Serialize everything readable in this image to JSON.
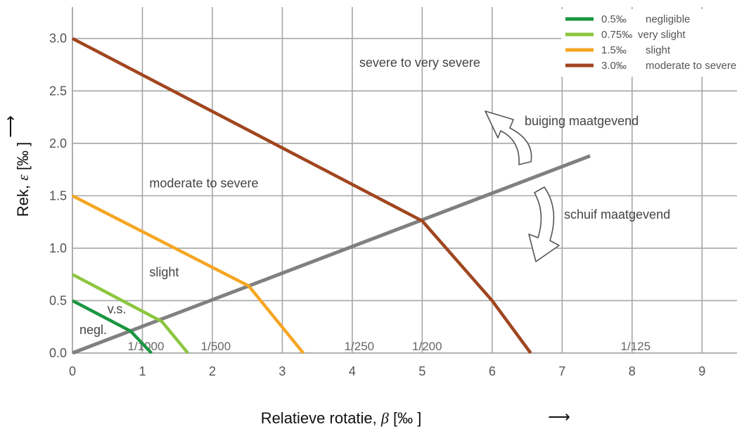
{
  "chart_data": {
    "type": "line",
    "xlabel": "Relatieve rotatie, β [‰ ]",
    "xlabel_parts": [
      "Relatieve rotatie, ",
      "β",
      " [‰ ]"
    ],
    "ylabel": "Rek, ε [‰ ]",
    "ylabel_parts": [
      "Rek, ",
      "ε",
      " [‰ ]"
    ],
    "arrow_glyph": "⟶",
    "xlim": [
      0,
      9.5
    ],
    "ylim": [
      0,
      3.3
    ],
    "x_ticks": [
      "0",
      "1",
      "2",
      "3",
      "4",
      "5",
      "6",
      "7",
      "8",
      "9"
    ],
    "y_ticks": [
      "0.0",
      "0.5",
      "1.0",
      "1.5",
      "2.0",
      "2.5",
      "3.0"
    ],
    "grid": true,
    "legend_position": "top-right",
    "series": [
      {
        "label": "0.5‰",
        "name": "negligible",
        "color": "#1a9641",
        "points": [
          [
            0,
            0.5
          ],
          [
            0.83,
            0.21
          ],
          [
            1.13,
            0.0
          ]
        ]
      },
      {
        "label": "0.75‰",
        "name": "very slight",
        "color": "#8cc63f",
        "points": [
          [
            0,
            0.75
          ],
          [
            1.28,
            0.3
          ],
          [
            1.65,
            0.0
          ]
        ]
      },
      {
        "label": "1.5‰",
        "name": "slight",
        "color": "#f5a623",
        "points": [
          [
            0,
            1.5
          ],
          [
            2.52,
            0.64
          ],
          [
            3.3,
            0.0
          ]
        ]
      },
      {
        "label": "3.0‰",
        "name": "moderate to severe",
        "color": "#a0461f",
        "points": [
          [
            0,
            3.0
          ],
          [
            5.0,
            1.26
          ],
          [
            6.0,
            0.5
          ],
          [
            6.55,
            0.0
          ]
        ]
      }
    ],
    "reference_line": {
      "color": "#808080",
      "points": [
        [
          0,
          0
        ],
        [
          7.4,
          1.88
        ]
      ]
    },
    "region_labels": [
      {
        "text": "severe to very severe",
        "x": 4.1,
        "y": 2.73
      },
      {
        "text": "moderate to severe",
        "x": 1.1,
        "y": 1.58
      },
      {
        "text": "slight",
        "x": 1.1,
        "y": 0.73
      },
      {
        "text": "v.s.",
        "x": 0.5,
        "y": 0.38
      },
      {
        "text": "negl.",
        "x": 0.1,
        "y": 0.18
      }
    ],
    "ratio_labels": [
      {
        "text": "1/1000",
        "x": 1.05
      },
      {
        "text": "1/500",
        "x": 2.05
      },
      {
        "text": "1/250",
        "x": 4.1
      },
      {
        "text": "1/200",
        "x": 5.07
      },
      {
        "text": "1/125",
        "x": 8.05
      }
    ],
    "annotations": {
      "bending": "buiging maatgevend",
      "shear": "schuif maatgevend"
    }
  }
}
